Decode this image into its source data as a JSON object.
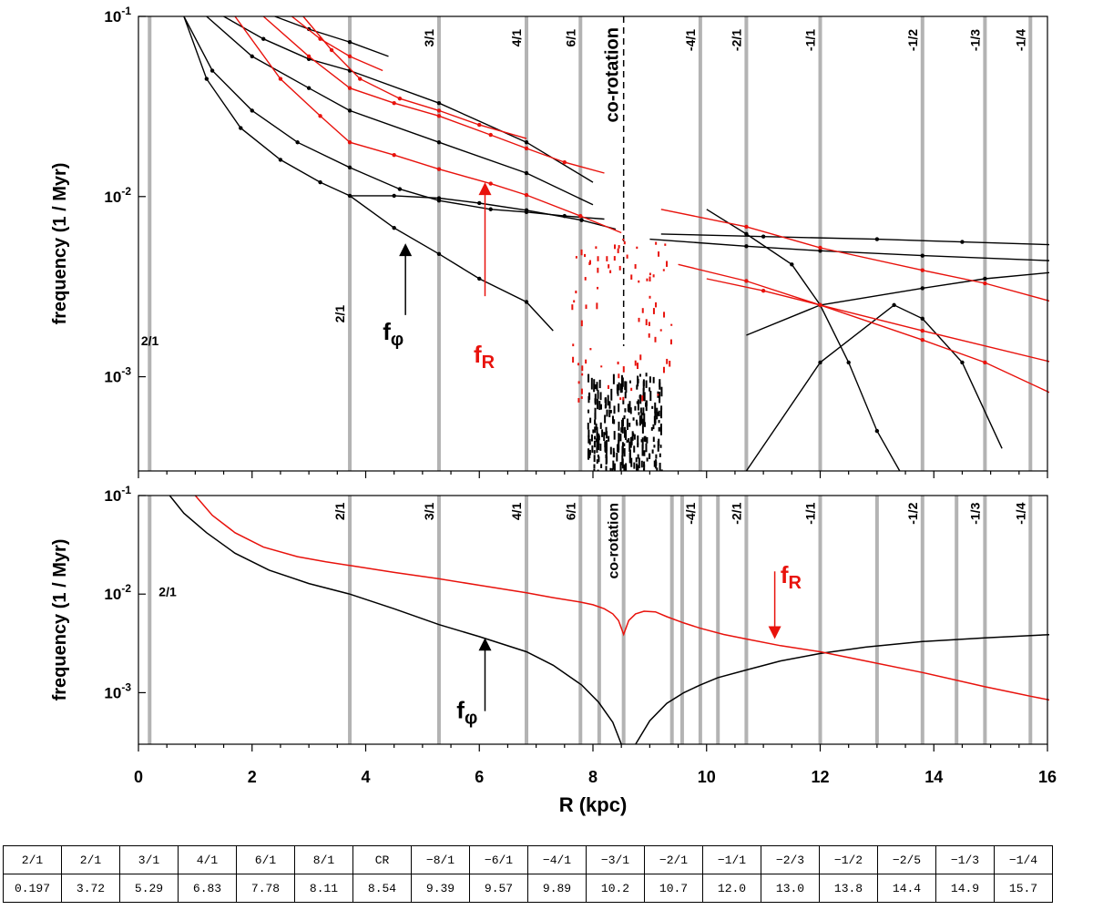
{
  "chart_data": [
    {
      "type": "scatter",
      "panel": "top",
      "xlabel": "",
      "ylabel": "frequency (1 / Myr)",
      "xlim": [
        0,
        16
      ],
      "ylim": [
        0.0003,
        0.1
      ],
      "yscale": "log",
      "yticks": [
        {
          "base": "10",
          "exp": "-3",
          "value": 0.001
        },
        {
          "base": "10",
          "exp": "-2",
          "value": 0.01
        },
        {
          "base": "10",
          "exp": "-1",
          "value": 0.1
        }
      ],
      "resonance_lines": [
        0.197,
        3.72,
        5.29,
        6.83,
        7.78,
        9.89,
        10.7,
        12.0,
        13.8,
        14.9,
        15.7
      ],
      "resonance_labels": [
        {
          "text": "2/1",
          "x": 0.197,
          "y": 0.0015
        },
        {
          "text": "2/1",
          "x": 3.72,
          "y": 0.0025
        },
        {
          "text": "3/1",
          "x": 5.29,
          "y": 0.085
        },
        {
          "text": "4/1",
          "x": 6.83,
          "y": 0.085
        },
        {
          "text": "6/1",
          "x": 7.78,
          "y": 0.085
        },
        {
          "text": "-4/1",
          "x": 9.89,
          "y": 0.085
        },
        {
          "text": "-2/1",
          "x": 10.7,
          "y": 0.085
        },
        {
          "text": "-1/1",
          "x": 12.0,
          "y": 0.085
        },
        {
          "text": "-1/2",
          "x": 13.8,
          "y": 0.085
        },
        {
          "text": "-1/3",
          "x": 14.9,
          "y": 0.085
        },
        {
          "text": "-1/4",
          "x": 15.7,
          "y": 0.085
        }
      ],
      "corotation": {
        "text": "co-rotation",
        "x": 8.54
      },
      "annotations": [
        {
          "main": "f",
          "sub": "φ",
          "color": "#000000",
          "arrow_x": 4.7,
          "arrow_y_from": 0.0022,
          "arrow_y_to": 0.0055,
          "text_x": 4.3,
          "text_y": 0.0016
        },
        {
          "main": "f",
          "sub": "R",
          "color": "#e8120c",
          "arrow_x": 6.1,
          "arrow_y_from": 0.0028,
          "arrow_y_to": 0.012,
          "text_x": 5.9,
          "text_y": 0.0012
        }
      ],
      "series": [
        {
          "color": "#000000",
          "x": [
            0.8,
            1.3,
            2,
            2.8,
            3.72,
            4.6,
            5.29,
            6.2,
            6.83,
            7.5,
            8.2
          ],
          "y": [
            0.1,
            0.05,
            0.03,
            0.02,
            0.0145,
            0.011,
            0.0095,
            0.0085,
            0.0082,
            0.0078,
            0.0075
          ]
        },
        {
          "color": "#000000",
          "x": [
            0.8,
            1.2,
            1.8,
            2.5,
            3.2,
            3.72,
            4.5,
            5.29,
            6.0,
            6.83,
            7.3
          ],
          "y": [
            0.1,
            0.045,
            0.024,
            0.016,
            0.012,
            0.0101,
            0.0067,
            0.0048,
            0.0035,
            0.0026,
            0.0018
          ]
        },
        {
          "color": "#000000",
          "x": [
            1.5,
            2.2,
            3.0,
            3.72,
            5.29,
            6.83,
            8.0
          ],
          "y": [
            0.1,
            0.075,
            0.058,
            0.05,
            0.033,
            0.02,
            0.012
          ]
        },
        {
          "color": "#000000",
          "x": [
            1.2,
            2.0,
            3.0,
            3.72,
            5.29,
            6.83,
            8.0
          ],
          "y": [
            0.1,
            0.06,
            0.04,
            0.03,
            0.02,
            0.0135,
            0.009
          ]
        },
        {
          "color": "#000000",
          "x": [
            3.72,
            4.5,
            5.29,
            6.0,
            6.83,
            7.8,
            8.4
          ],
          "y": [
            0.0101,
            0.0101,
            0.0098,
            0.0092,
            0.0084,
            0.0074,
            0.0066
          ]
        },
        {
          "color": "#000000",
          "x": [
            2.4,
            3.0,
            3.72,
            4.4
          ],
          "y": [
            0.1,
            0.085,
            0.072,
            0.06
          ]
        },
        {
          "color": "#000000",
          "x": [
            9.0,
            10.7,
            12.0,
            13.8,
            16.1
          ],
          "y": [
            0.0058,
            0.0053,
            0.005,
            0.0047,
            0.0044
          ]
        },
        {
          "color": "#000000",
          "x": [
            9.2,
            11.0,
            13.0,
            14.5,
            16.1
          ],
          "y": [
            0.0062,
            0.006,
            0.0058,
            0.0056,
            0.0054
          ]
        },
        {
          "color": "#000000",
          "x": [
            10.7,
            12.0,
            13.8,
            14.9,
            16.1
          ],
          "y": [
            0.0017,
            0.0025,
            0.0031,
            0.0035,
            0.0038
          ]
        },
        {
          "color": "#000000",
          "x": [
            10.0,
            10.7,
            11.5,
            12.0,
            12.5,
            13.0,
            13.4
          ],
          "y": [
            0.0085,
            0.0062,
            0.0042,
            0.0025,
            0.0012,
            0.0005,
            0.0003
          ]
        },
        {
          "color": "#000000",
          "x": [
            10.7,
            12.0,
            13.3,
            13.8,
            14.5,
            15.2
          ],
          "y": [
            0.0003,
            0.0012,
            0.0025,
            0.0021,
            0.0012,
            0.0004
          ]
        },
        {
          "color": "#e8120c",
          "x": [
            2.2,
            3.0,
            3.72,
            4.5,
            5.29,
            6.2,
            6.83,
            7.5,
            8.2
          ],
          "y": [
            0.1,
            0.06,
            0.04,
            0.033,
            0.028,
            0.022,
            0.0185,
            0.0155,
            0.0135
          ]
        },
        {
          "color": "#e8120c",
          "x": [
            1.7,
            2.5,
            3.2,
            3.72,
            4.5,
            5.29,
            6.2,
            6.83,
            7.78,
            8.5
          ],
          "y": [
            0.1,
            0.045,
            0.028,
            0.02,
            0.017,
            0.0142,
            0.0118,
            0.0102,
            0.0078,
            0.0063
          ]
        },
        {
          "color": "#e8120c",
          "x": [
            2.7,
            3.2,
            3.72,
            4.3
          ],
          "y": [
            0.1,
            0.075,
            0.06,
            0.05
          ]
        },
        {
          "color": "#e8120c",
          "x": [
            2.9,
            3.4,
            3.9,
            4.6,
            5.29,
            6.0,
            6.83
          ],
          "y": [
            0.1,
            0.065,
            0.045,
            0.035,
            0.03,
            0.025,
            0.021
          ]
        },
        {
          "color": "#e8120c",
          "x": [
            9.2,
            10.7,
            12.0,
            13.8,
            14.9,
            16.1
          ],
          "y": [
            0.0085,
            0.0068,
            0.0052,
            0.0039,
            0.0033,
            0.0026
          ]
        },
        {
          "color": "#e8120c",
          "x": [
            9.5,
            10.7,
            12.0,
            13.8,
            14.9,
            16.1
          ],
          "y": [
            0.0042,
            0.0034,
            0.0025,
            0.0016,
            0.0012,
            0.0008
          ]
        },
        {
          "color": "#e8120c",
          "x": [
            10.0,
            11.0,
            12.0,
            13.8,
            16.1
          ],
          "y": [
            0.0035,
            0.003,
            0.0025,
            0.0018,
            0.0012
          ]
        }
      ]
    },
    {
      "type": "line",
      "panel": "bottom",
      "xlabel": "R (kpc)",
      "ylabel": "frequency (1 / Myr)",
      "xlim": [
        0,
        16
      ],
      "ylim": [
        0.0003,
        0.1
      ],
      "yscale": "log",
      "xticks": [
        0,
        2,
        4,
        6,
        8,
        10,
        12,
        14,
        16
      ],
      "yticks": [
        {
          "base": "10",
          "exp": "-3",
          "value": 0.001
        },
        {
          "base": "10",
          "exp": "-2",
          "value": 0.01
        },
        {
          "base": "10",
          "exp": "-1",
          "value": 0.1
        }
      ],
      "resonance_lines": [
        0.197,
        3.72,
        5.29,
        6.83,
        7.78,
        8.11,
        8.54,
        9.39,
        9.57,
        9.89,
        10.2,
        10.7,
        12.0,
        13.0,
        13.8,
        14.4,
        14.9,
        15.7
      ],
      "resonance_labels": [
        {
          "text": "2/1",
          "x": 0.197,
          "y": 0.0095
        },
        {
          "text": "2/1",
          "x": 3.72,
          "y": 0.085
        },
        {
          "text": "3/1",
          "x": 5.29,
          "y": 0.085
        },
        {
          "text": "4/1",
          "x": 6.83,
          "y": 0.085
        },
        {
          "text": "6/1",
          "x": 7.78,
          "y": 0.085
        },
        {
          "text": "-4/1",
          "x": 9.89,
          "y": 0.085
        },
        {
          "text": "-2/1",
          "x": 10.7,
          "y": 0.085
        },
        {
          "text": "-1/1",
          "x": 12.0,
          "y": 0.085
        },
        {
          "text": "-1/2",
          "x": 13.8,
          "y": 0.085
        },
        {
          "text": "-1/3",
          "x": 14.9,
          "y": 0.085
        },
        {
          "text": "-1/4",
          "x": 15.7,
          "y": 0.085
        }
      ],
      "corotation": {
        "text": "co-rotation",
        "x": 8.54
      },
      "annotations": [
        {
          "main": "f",
          "sub": "φ",
          "color": "#000000",
          "arrow_x": 6.1,
          "arrow_y_from": 0.00065,
          "arrow_y_to": 0.0036,
          "text_x": 5.6,
          "text_y": 0.00055
        },
        {
          "main": "f",
          "sub": "R",
          "color": "#e8120c",
          "arrow_x": 11.2,
          "arrow_y_from": 0.017,
          "arrow_y_to": 0.0035,
          "text_x": 11.3,
          "text_y": 0.013
        }
      ],
      "series": [
        {
          "name": "f_phi",
          "color": "#000000",
          "x": [
            0.55,
            0.8,
            1.2,
            1.7,
            2.3,
            3.0,
            3.72,
            4.5,
            5.29,
            6.0,
            6.83,
            7.3,
            7.8,
            8.1,
            8.35,
            8.5
          ],
          "y": [
            0.1,
            0.066,
            0.042,
            0.026,
            0.0175,
            0.0128,
            0.01,
            0.0071,
            0.0049,
            0.0037,
            0.0026,
            0.0019,
            0.0012,
            0.0008,
            0.0005,
            0.0003
          ]
        },
        {
          "name": "f_phi",
          "color": "#000000",
          "x": [
            8.75,
            9.0,
            9.3,
            9.6,
            9.89,
            10.2,
            10.7,
            11.3,
            12.0,
            12.8,
            13.8,
            14.9,
            15.7,
            16.1
          ],
          "y": [
            0.0003,
            0.00052,
            0.00078,
            0.001,
            0.0012,
            0.00142,
            0.0017,
            0.0021,
            0.0025,
            0.0029,
            0.0033,
            0.0036,
            0.0038,
            0.0039
          ]
        },
        {
          "name": "f_R",
          "color": "#e8120c",
          "x": [
            1.0,
            1.3,
            1.7,
            2.2,
            2.8,
            3.3,
            3.72,
            4.5,
            5.29,
            6.0,
            6.83,
            7.3,
            7.78,
            8.0,
            8.2,
            8.35,
            8.45,
            8.54,
            8.63,
            8.75,
            8.9,
            9.1,
            9.3,
            9.6,
            9.89,
            10.3,
            10.7,
            11.3,
            12.0,
            12.8,
            13.8,
            14.9,
            15.7,
            16.1
          ],
          "y": [
            0.1,
            0.063,
            0.042,
            0.03,
            0.024,
            0.0213,
            0.0195,
            0.0166,
            0.0143,
            0.0123,
            0.0103,
            0.0092,
            0.0083,
            0.0078,
            0.0071,
            0.0063,
            0.0054,
            0.0039,
            0.0054,
            0.0063,
            0.0067,
            0.0066,
            0.0059,
            0.0051,
            0.0045,
            0.0039,
            0.0035,
            0.003,
            0.0026,
            0.0021,
            0.0016,
            0.00115,
            0.00092,
            0.00083
          ]
        }
      ]
    }
  ],
  "table": {
    "resonances": [
      "2/1",
      "2/1",
      "3/1",
      "4/1",
      "6/1",
      "8/1",
      "CR",
      "−8/1",
      "−6/1",
      "−4/1",
      "−3/1",
      "−2/1",
      "−1/1",
      "−2/3",
      "−1/2",
      "−2/5",
      "−1/3",
      "−1/4"
    ],
    "radii": [
      "0.197",
      "3.72",
      "5.29",
      "6.83",
      "7.78",
      "8.11",
      "8.54",
      "9.39",
      "9.57",
      "9.89",
      "10.2",
      "10.7",
      "12.0",
      "13.0",
      "13.8",
      "14.4",
      "14.9",
      "15.7"
    ]
  }
}
